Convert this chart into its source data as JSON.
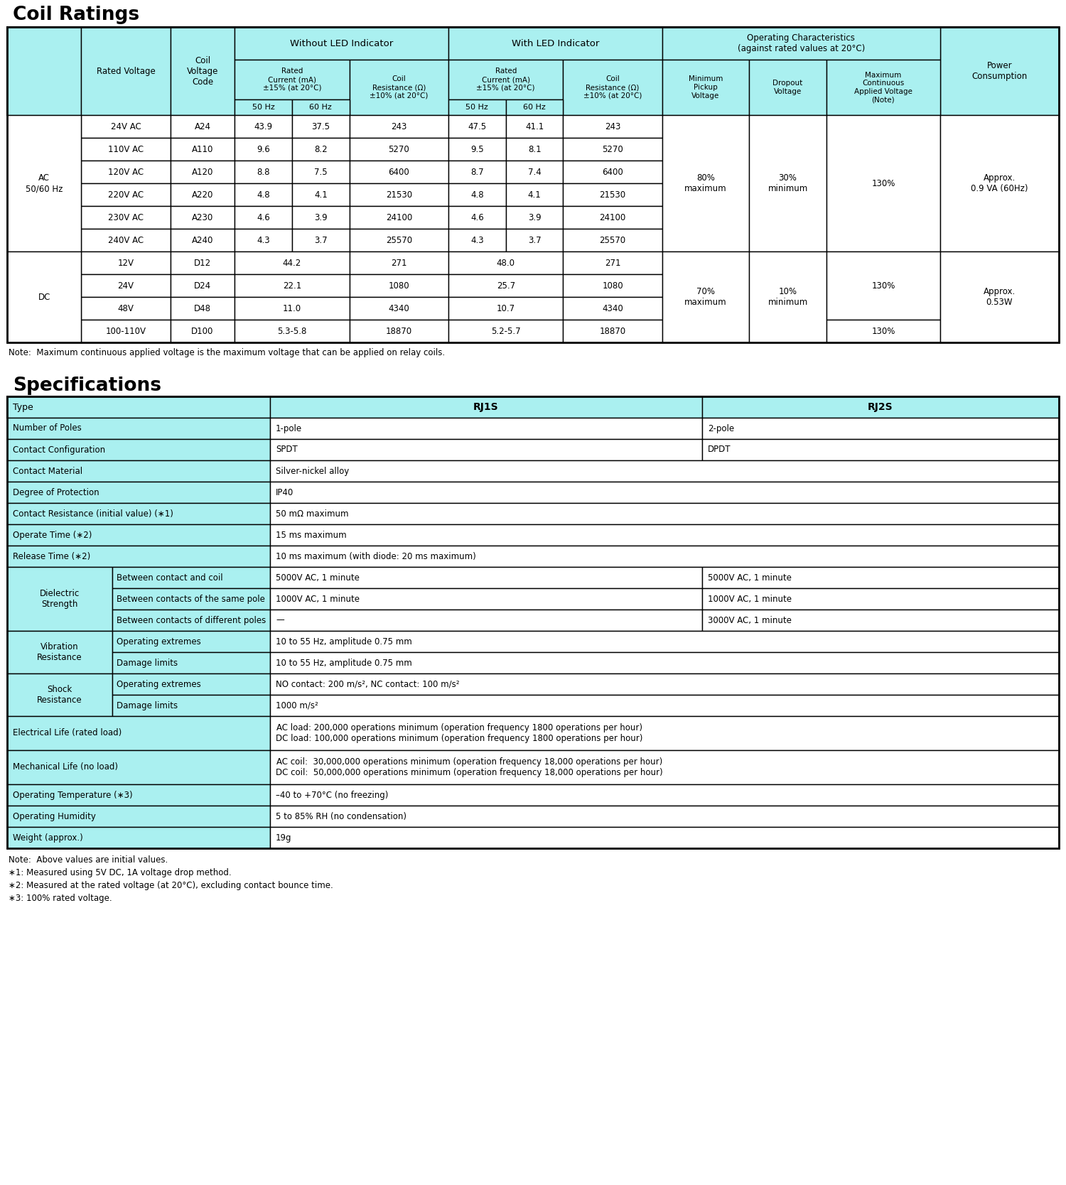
{
  "title1": "Coil Ratings",
  "title2": "Specifications",
  "header_bg": "#aaf0f0",
  "white_bg": "#ffffff",
  "border_color": "#000000",
  "note1": "Note:  Maximum continuous applied voltage is the maximum voltage that can be applied on relay coils.",
  "note2_lines": [
    "Note:  Above values are initial values.",
    "∗1: Measured using 5V DC, 1A voltage drop method.",
    "∗2: Measured at the rated voltage (at 20°C), excluding contact bounce time.",
    "∗3: 100% rated voltage."
  ],
  "ac_rows": [
    [
      "24V AC",
      "A24",
      "43.9",
      "37.5",
      "243",
      "47.5",
      "41.1",
      "243"
    ],
    [
      "110V AC",
      "A110",
      "9.6",
      "8.2",
      "5270",
      "9.5",
      "8.1",
      "5270"
    ],
    [
      "120V AC",
      "A120",
      "8.8",
      "7.5",
      "6400",
      "8.7",
      "7.4",
      "6400"
    ],
    [
      "220V AC",
      "A220",
      "4.8",
      "4.1",
      "21530",
      "4.8",
      "4.1",
      "21530"
    ],
    [
      "230V AC",
      "A230",
      "4.6",
      "3.9",
      "24100",
      "4.6",
      "3.9",
      "24100"
    ],
    [
      "240V AC",
      "A240",
      "4.3",
      "3.7",
      "25570",
      "4.3",
      "3.7",
      "25570"
    ]
  ],
  "dc_rows": [
    [
      "12V",
      "D12",
      "44.2",
      "271",
      "48.0",
      "271"
    ],
    [
      "24V",
      "D24",
      "22.1",
      "1080",
      "25.7",
      "1080"
    ],
    [
      "48V",
      "D48",
      "11.0",
      "4340",
      "10.7",
      "4340"
    ],
    [
      "100-110V",
      "D100",
      "5.3-5.8",
      "18870",
      "5.2-5.7",
      "18870"
    ]
  ],
  "spec_rows": [
    {
      "label": "Number of Poles",
      "rj1s": "1-pole",
      "rj2s": "2-pole",
      "merged": false,
      "sub": false
    },
    {
      "label": "Contact Configuration",
      "rj1s": "SPDT",
      "rj2s": "DPDT",
      "merged": false,
      "sub": false
    },
    {
      "label": "Contact Material",
      "rj1s": "Silver-nickel alloy",
      "rj2s": "",
      "merged": true,
      "sub": false
    },
    {
      "label": "Degree of Protection",
      "rj1s": "IP40",
      "rj2s": "",
      "merged": true,
      "sub": false
    },
    {
      "label": "Contact Resistance (initial value) (∗1)",
      "rj1s": "50 mΩ maximum",
      "rj2s": "",
      "merged": true,
      "sub": false
    },
    {
      "label": "Operate Time (∗2)",
      "rj1s": "15 ms maximum",
      "rj2s": "",
      "merged": true,
      "sub": false
    },
    {
      "label": "Release Time (∗2)",
      "rj1s": "10 ms maximum (with diode: 20 ms maximum)",
      "rj2s": "",
      "merged": true,
      "sub": false
    },
    {
      "label": "Dielectric\nStrength",
      "sublabel": "Between contact and coil",
      "rj1s": "5000V AC, 1 minute",
      "rj2s": "5000V AC, 1 minute",
      "merged": false,
      "sub": true,
      "group_start": true,
      "group_rows": 3
    },
    {
      "label": "",
      "sublabel": "Between contacts of the same pole",
      "rj1s": "1000V AC, 1 minute",
      "rj2s": "1000V AC, 1 minute",
      "merged": false,
      "sub": true,
      "group_start": false
    },
    {
      "label": "",
      "sublabel": "Between contacts of different poles",
      "rj1s": "—",
      "rj2s": "3000V AC, 1 minute",
      "merged": false,
      "sub": true,
      "group_start": false
    },
    {
      "label": "Vibration\nResistance",
      "sublabel": "Operating extremes",
      "rj1s": "10 to 55 Hz, amplitude 0.75 mm",
      "rj2s": "",
      "merged": true,
      "sub": true,
      "group_start": true,
      "group_rows": 2
    },
    {
      "label": "",
      "sublabel": "Damage limits",
      "rj1s": "10 to 55 Hz, amplitude 0.75 mm",
      "rj2s": "",
      "merged": true,
      "sub": true,
      "group_start": false
    },
    {
      "label": "Shock\nResistance",
      "sublabel": "Operating extremes",
      "rj1s": "NO contact: 200 m/s², NC contact: 100 m/s²",
      "rj2s": "",
      "merged": true,
      "sub": true,
      "group_start": true,
      "group_rows": 2
    },
    {
      "label": "",
      "sublabel": "Damage limits",
      "rj1s": "1000 m/s²",
      "rj2s": "",
      "merged": true,
      "sub": true,
      "group_start": false
    },
    {
      "label": "Electrical Life (rated load)",
      "rj1s": "AC load: 200,000 operations minimum (operation frequency 1800 operations per hour)\nDC load: 100,000 operations minimum (operation frequency 1800 operations per hour)",
      "rj2s": "",
      "merged": true,
      "sub": false
    },
    {
      "label": "Mechanical Life (no load)",
      "rj1s": "AC coil:  30,000,000 operations minimum (operation frequency 18,000 operations per hour)\nDC coil:  50,000,000 operations minimum (operation frequency 18,000 operations per hour)",
      "rj2s": "",
      "merged": true,
      "sub": false
    },
    {
      "label": "Operating Temperature (∗3)",
      "rj1s": "–40 to +70°C (no freezing)",
      "rj2s": "",
      "merged": true,
      "sub": false
    },
    {
      "label": "Operating Humidity",
      "rj1s": "5 to 85% RH (no condensation)",
      "rj2s": "",
      "merged": true,
      "sub": false
    },
    {
      "label": "Weight (approx.)",
      "rj1s": "19g",
      "rj2s": "",
      "merged": true,
      "sub": false
    }
  ]
}
